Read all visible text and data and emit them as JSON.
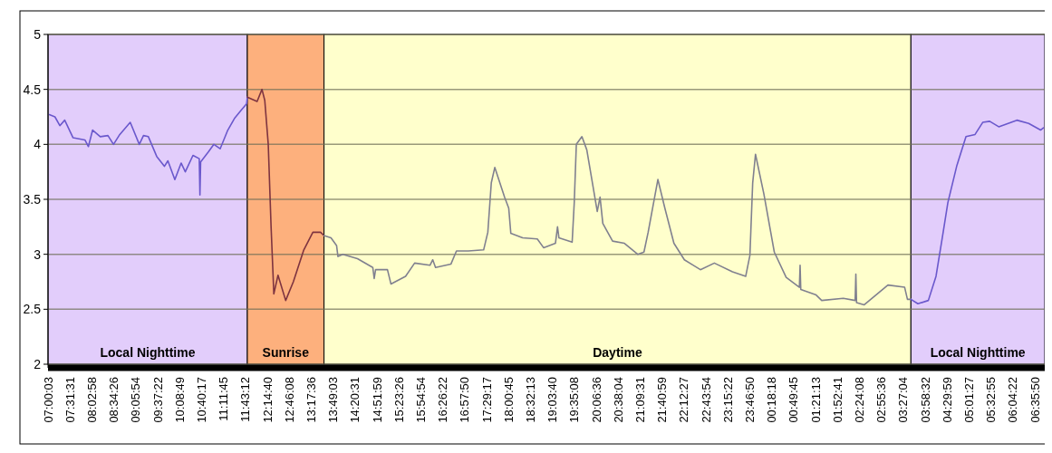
{
  "chart_data": {
    "type": "line",
    "xlim": [
      "2000-01-01T07:00:03",
      "2000-01-02T06:50"
    ],
    "ylim": [
      2,
      5
    ],
    "yticks": [
      2,
      2.5,
      3,
      3.5,
      4,
      4.5,
      5
    ],
    "xticks": [
      {
        "value": "2000-01-01T07:00:03",
        "label": "07:00:03"
      },
      {
        "value": "2000-01-01T07:31:31",
        "label": "07:31:31"
      },
      {
        "value": "2000-01-01T08:02:58",
        "label": "08:02:58"
      },
      {
        "value": "2000-01-01T08:34:26",
        "label": "08:34:26"
      },
      {
        "value": "2000-01-01T09:05:54",
        "label": "09:05:54"
      },
      {
        "value": "2000-01-01T09:37:22",
        "label": "09:37:22"
      },
      {
        "value": "2000-01-01T10:08:49",
        "label": "10:08:49"
      },
      {
        "value": "2000-01-01T10:40:17",
        "label": "10:40:17"
      },
      {
        "value": "2000-01-01T11:11:45",
        "label": "11:11:45"
      },
      {
        "value": "2000-01-01T11:43:12",
        "label": "11:43:12"
      },
      {
        "value": "2000-01-01T12:14:40",
        "label": "12:14:40"
      },
      {
        "value": "2000-01-01T12:46:08",
        "label": "12:46:08"
      },
      {
        "value": "2000-01-01T13:17:36",
        "label": "13:17:36"
      },
      {
        "value": "2000-01-01T13:49:03",
        "label": "13:49:03"
      },
      {
        "value": "2000-01-01T14:20:31",
        "label": "14:20:31"
      },
      {
        "value": "2000-01-01T14:51:59",
        "label": "14:51:59"
      },
      {
        "value": "2000-01-01T15:23:26",
        "label": "15:23:26"
      },
      {
        "value": "2000-01-01T15:54:54",
        "label": "15:54:54"
      },
      {
        "value": "2000-01-01T16:26:22",
        "label": "16:26:22"
      },
      {
        "value": "2000-01-01T16:57:50",
        "label": "16:57:50"
      },
      {
        "value": "2000-01-01T17:29:17",
        "label": "17:29:17"
      },
      {
        "value": "2000-01-01T18:00:45",
        "label": "18:00:45"
      },
      {
        "value": "2000-01-01T18:32:13",
        "label": "18:32:13"
      },
      {
        "value": "2000-01-01T19:03:40",
        "label": "19:03:40"
      },
      {
        "value": "2000-01-01T19:35:08",
        "label": "19:35:08"
      },
      {
        "value": "2000-01-01T20:06:36",
        "label": "20:06:36"
      },
      {
        "value": "2000-01-01T20:38:04",
        "label": "20:38:04"
      },
      {
        "value": "2000-01-01T21:09:31",
        "label": "21:09:31"
      },
      {
        "value": "2000-01-01T21:40:59",
        "label": "21:40:59"
      },
      {
        "value": "2000-01-01T22:12:27",
        "label": "22:12:27"
      },
      {
        "value": "2000-01-01T22:43:54",
        "label": "22:43:54"
      },
      {
        "value": "2000-01-01T23:15:22",
        "label": "23:15:22"
      },
      {
        "value": "2000-01-01T23:46:50",
        "label": "23:46:50"
      },
      {
        "value": "2000-01-02T00:18:18",
        "label": "00:18:18"
      },
      {
        "value": "2000-01-02T00:49:45",
        "label": "00:49:45"
      },
      {
        "value": "2000-01-02T01:21:13",
        "label": "01:21:13"
      },
      {
        "value": "2000-01-02T01:52:41",
        "label": "01:52:41"
      },
      {
        "value": "2000-01-02T02:24:08",
        "label": "02:24:08"
      },
      {
        "value": "2000-01-02T02:55:36",
        "label": "02:55:36"
      },
      {
        "value": "2000-01-02T03:27:04",
        "label": "03:27:04"
      },
      {
        "value": "2000-01-02T03:58:32",
        "label": "03:58:32"
      },
      {
        "value": "2000-01-02T04:29:59",
        "label": "04:29:59"
      },
      {
        "value": "2000-01-02T05:01:27",
        "label": "05:01:27"
      },
      {
        "value": "2000-01-02T05:32:55",
        "label": "05:32:55"
      },
      {
        "value": "2000-01-02T06:04:22",
        "label": "06:04:22"
      },
      {
        "value": "2000-01-02T06:35:50",
        "label": "06:35:50"
      }
    ],
    "grid": "y",
    "bands": [
      {
        "axis": "x",
        "from": "2000-01-01T07:00:03",
        "to": "2000-01-01T11:46",
        "label": "Local Nighttime",
        "color": "#e2cdfb"
      },
      {
        "axis": "x",
        "from": "2000-01-01T11:46",
        "to": "2000-01-01T13:36",
        "label": "Sunrise",
        "color": "#fdb07d"
      },
      {
        "axis": "x",
        "from": "2000-01-01T13:36",
        "to": "2000-01-02T03:38",
        "label": "Daytime",
        "color": "#ffffcc"
      },
      {
        "axis": "x",
        "from": "2000-01-02T03:38",
        "to": "2000-01-02T06:50",
        "label": "Local Nighttime",
        "color": "#e2cdfb"
      }
    ],
    "series": [
      {
        "color": "#6a58cc",
        "x": [
          "2000-01-01T07:02",
          "2000-01-01T07:10",
          "2000-01-01T07:17",
          "2000-01-01T07:24",
          "2000-01-01T07:36",
          "2000-01-01T07:53",
          "2000-01-01T07:58",
          "2000-01-01T08:04",
          "2000-01-01T08:15",
          "2000-01-01T08:26",
          "2000-01-01T08:34",
          "2000-01-01T08:43",
          "2000-01-01T08:58",
          "2000-01-01T09:11",
          "2000-01-01T09:17",
          "2000-01-01T09:24",
          "2000-01-01T09:36",
          "2000-01-01T09:47",
          "2000-01-01T09:52",
          "2000-01-01T10:02",
          "2000-01-01T10:11",
          "2000-01-01T10:17",
          "2000-01-01T10:28",
          "2000-01-01T10:37",
          "2000-01-01T10:38",
          "2000-01-01T10:39",
          "2000-01-01T10:50",
          "2000-01-01T10:58",
          "2000-01-01T11:07",
          "2000-01-01T11:18",
          "2000-01-01T11:28",
          "2000-01-01T11:37",
          "2000-01-01T11:45",
          "2000-01-01T11:46"
        ],
        "values": [
          4.27,
          4.25,
          4.17,
          4.22,
          4.06,
          4.04,
          3.98,
          4.13,
          4.07,
          4.08,
          4.0,
          4.09,
          4.2,
          4.0,
          4.08,
          4.07,
          3.89,
          3.8,
          3.85,
          3.68,
          3.83,
          3.75,
          3.9,
          3.87,
          3.54,
          3.84,
          3.93,
          4.0,
          3.96,
          4.13,
          4.24,
          4.31,
          4.37,
          4.43
        ]
      },
      {
        "color": "#7e3440",
        "x": [
          "2000-01-01T11:46",
          "2000-01-01T12:00",
          "2000-01-01T12:07",
          "2000-01-01T12:11",
          "2000-01-01T12:16",
          "2000-01-01T12:20",
          "2000-01-01T12:24",
          "2000-01-01T12:30",
          "2000-01-01T12:41",
          "2000-01-01T12:52",
          "2000-01-01T13:07",
          "2000-01-01T13:20",
          "2000-01-01T13:31",
          "2000-01-01T13:36"
        ],
        "values": [
          4.43,
          4.39,
          4.5,
          4.4,
          4.0,
          3.26,
          2.64,
          2.81,
          2.58,
          2.75,
          3.04,
          3.2,
          3.2,
          3.17
        ]
      },
      {
        "color": "#80808f",
        "x": [
          "2000-01-01T13:36",
          "2000-01-01T13:46",
          "2000-01-01T13:54",
          "2000-01-01T13:56",
          "2000-01-01T14:03",
          "2000-01-01T14:24",
          "2000-01-01T14:46",
          "2000-01-01T14:48",
          "2000-01-01T14:50",
          "2000-01-01T15:07",
          "2000-01-01T15:12",
          "2000-01-01T15:33",
          "2000-01-01T15:46",
          "2000-01-01T16:08",
          "2000-01-01T16:12",
          "2000-01-01T16:16",
          "2000-01-01T16:38",
          "2000-01-01T16:46",
          "2000-01-01T17:03",
          "2000-01-01T17:25",
          "2000-01-01T17:31",
          "2000-01-01T17:36",
          "2000-01-01T17:41",
          "2000-01-01T17:55",
          "2000-01-01T18:01",
          "2000-01-01T18:04",
          "2000-01-01T18:21",
          "2000-01-01T18:42",
          "2000-01-01T18:51",
          "2000-01-01T19:08",
          "2000-01-01T19:11",
          "2000-01-01T19:13",
          "2000-01-01T19:32",
          "2000-01-01T19:35",
          "2000-01-01T19:38",
          "2000-01-01T19:46",
          "2000-01-01T19:53",
          "2000-01-01T20:08",
          "2000-01-01T20:12",
          "2000-01-01T20:16",
          "2000-01-01T20:30",
          "2000-01-01T20:47",
          "2000-01-01T21:06",
          "2000-01-01T21:15",
          "2000-01-01T21:21",
          "2000-01-01T21:35",
          "2000-01-01T21:45",
          "2000-01-01T21:58",
          "2000-01-01T22:13",
          "2000-01-01T22:36",
          "2000-01-01T22:56",
          "2000-01-01T23:22",
          "2000-01-01T23:41",
          "2000-01-01T23:47",
          "2000-01-01T23:51",
          "2000-01-01T23:55",
          "2000-01-02T00:07",
          "2000-01-02T00:22",
          "2000-01-02T00:39",
          "2000-01-02T00:58",
          "2000-01-02T00:59",
          "2000-01-02T01:00",
          "2000-01-02T01:22",
          "2000-01-02T01:30",
          "2000-01-02T02:01",
          "2000-01-02T02:18",
          "2000-01-02T02:19",
          "2000-01-02T02:20",
          "2000-01-02T02:31",
          "2000-01-02T03:05",
          "2000-01-02T03:29",
          "2000-01-02T03:33",
          "2000-01-02T03:38"
        ],
        "values": [
          3.17,
          3.15,
          3.08,
          2.98,
          3.0,
          2.96,
          2.88,
          2.78,
          2.86,
          2.86,
          2.73,
          2.8,
          2.92,
          2.9,
          2.95,
          2.88,
          2.91,
          3.03,
          3.03,
          3.04,
          3.2,
          3.65,
          3.79,
          3.52,
          3.42,
          3.19,
          3.15,
          3.14,
          3.06,
          3.1,
          3.25,
          3.15,
          3.11,
          3.47,
          4.0,
          4.07,
          3.95,
          3.39,
          3.52,
          3.28,
          3.12,
          3.1,
          3.0,
          3.02,
          3.2,
          3.68,
          3.42,
          3.1,
          2.95,
          2.86,
          2.92,
          2.84,
          2.8,
          2.99,
          3.65,
          3.91,
          3.55,
          3.02,
          2.79,
          2.7,
          2.9,
          2.68,
          2.63,
          2.58,
          2.6,
          2.58,
          2.82,
          2.56,
          2.54,
          2.72,
          2.7,
          2.59,
          2.59
        ]
      },
      {
        "color": "#6a58cc",
        "x": [
          "2000-01-02T03:38",
          "2000-01-02T03:48",
          "2000-01-02T04:03",
          "2000-01-02T04:14",
          "2000-01-02T04:23",
          "2000-01-02T04:31",
          "2000-01-02T04:44",
          "2000-01-02T04:57",
          "2000-01-02T05:10",
          "2000-01-02T05:21",
          "2000-01-02T05:31",
          "2000-01-02T05:44",
          "2000-01-02T06:10",
          "2000-01-02T06:27",
          "2000-01-02T06:44",
          "2000-01-02T06:48"
        ],
        "values": [
          2.59,
          2.55,
          2.58,
          2.8,
          3.15,
          3.47,
          3.81,
          4.07,
          4.09,
          4.2,
          4.21,
          4.16,
          4.22,
          4.19,
          4.13,
          4.15
        ]
      }
    ]
  }
}
